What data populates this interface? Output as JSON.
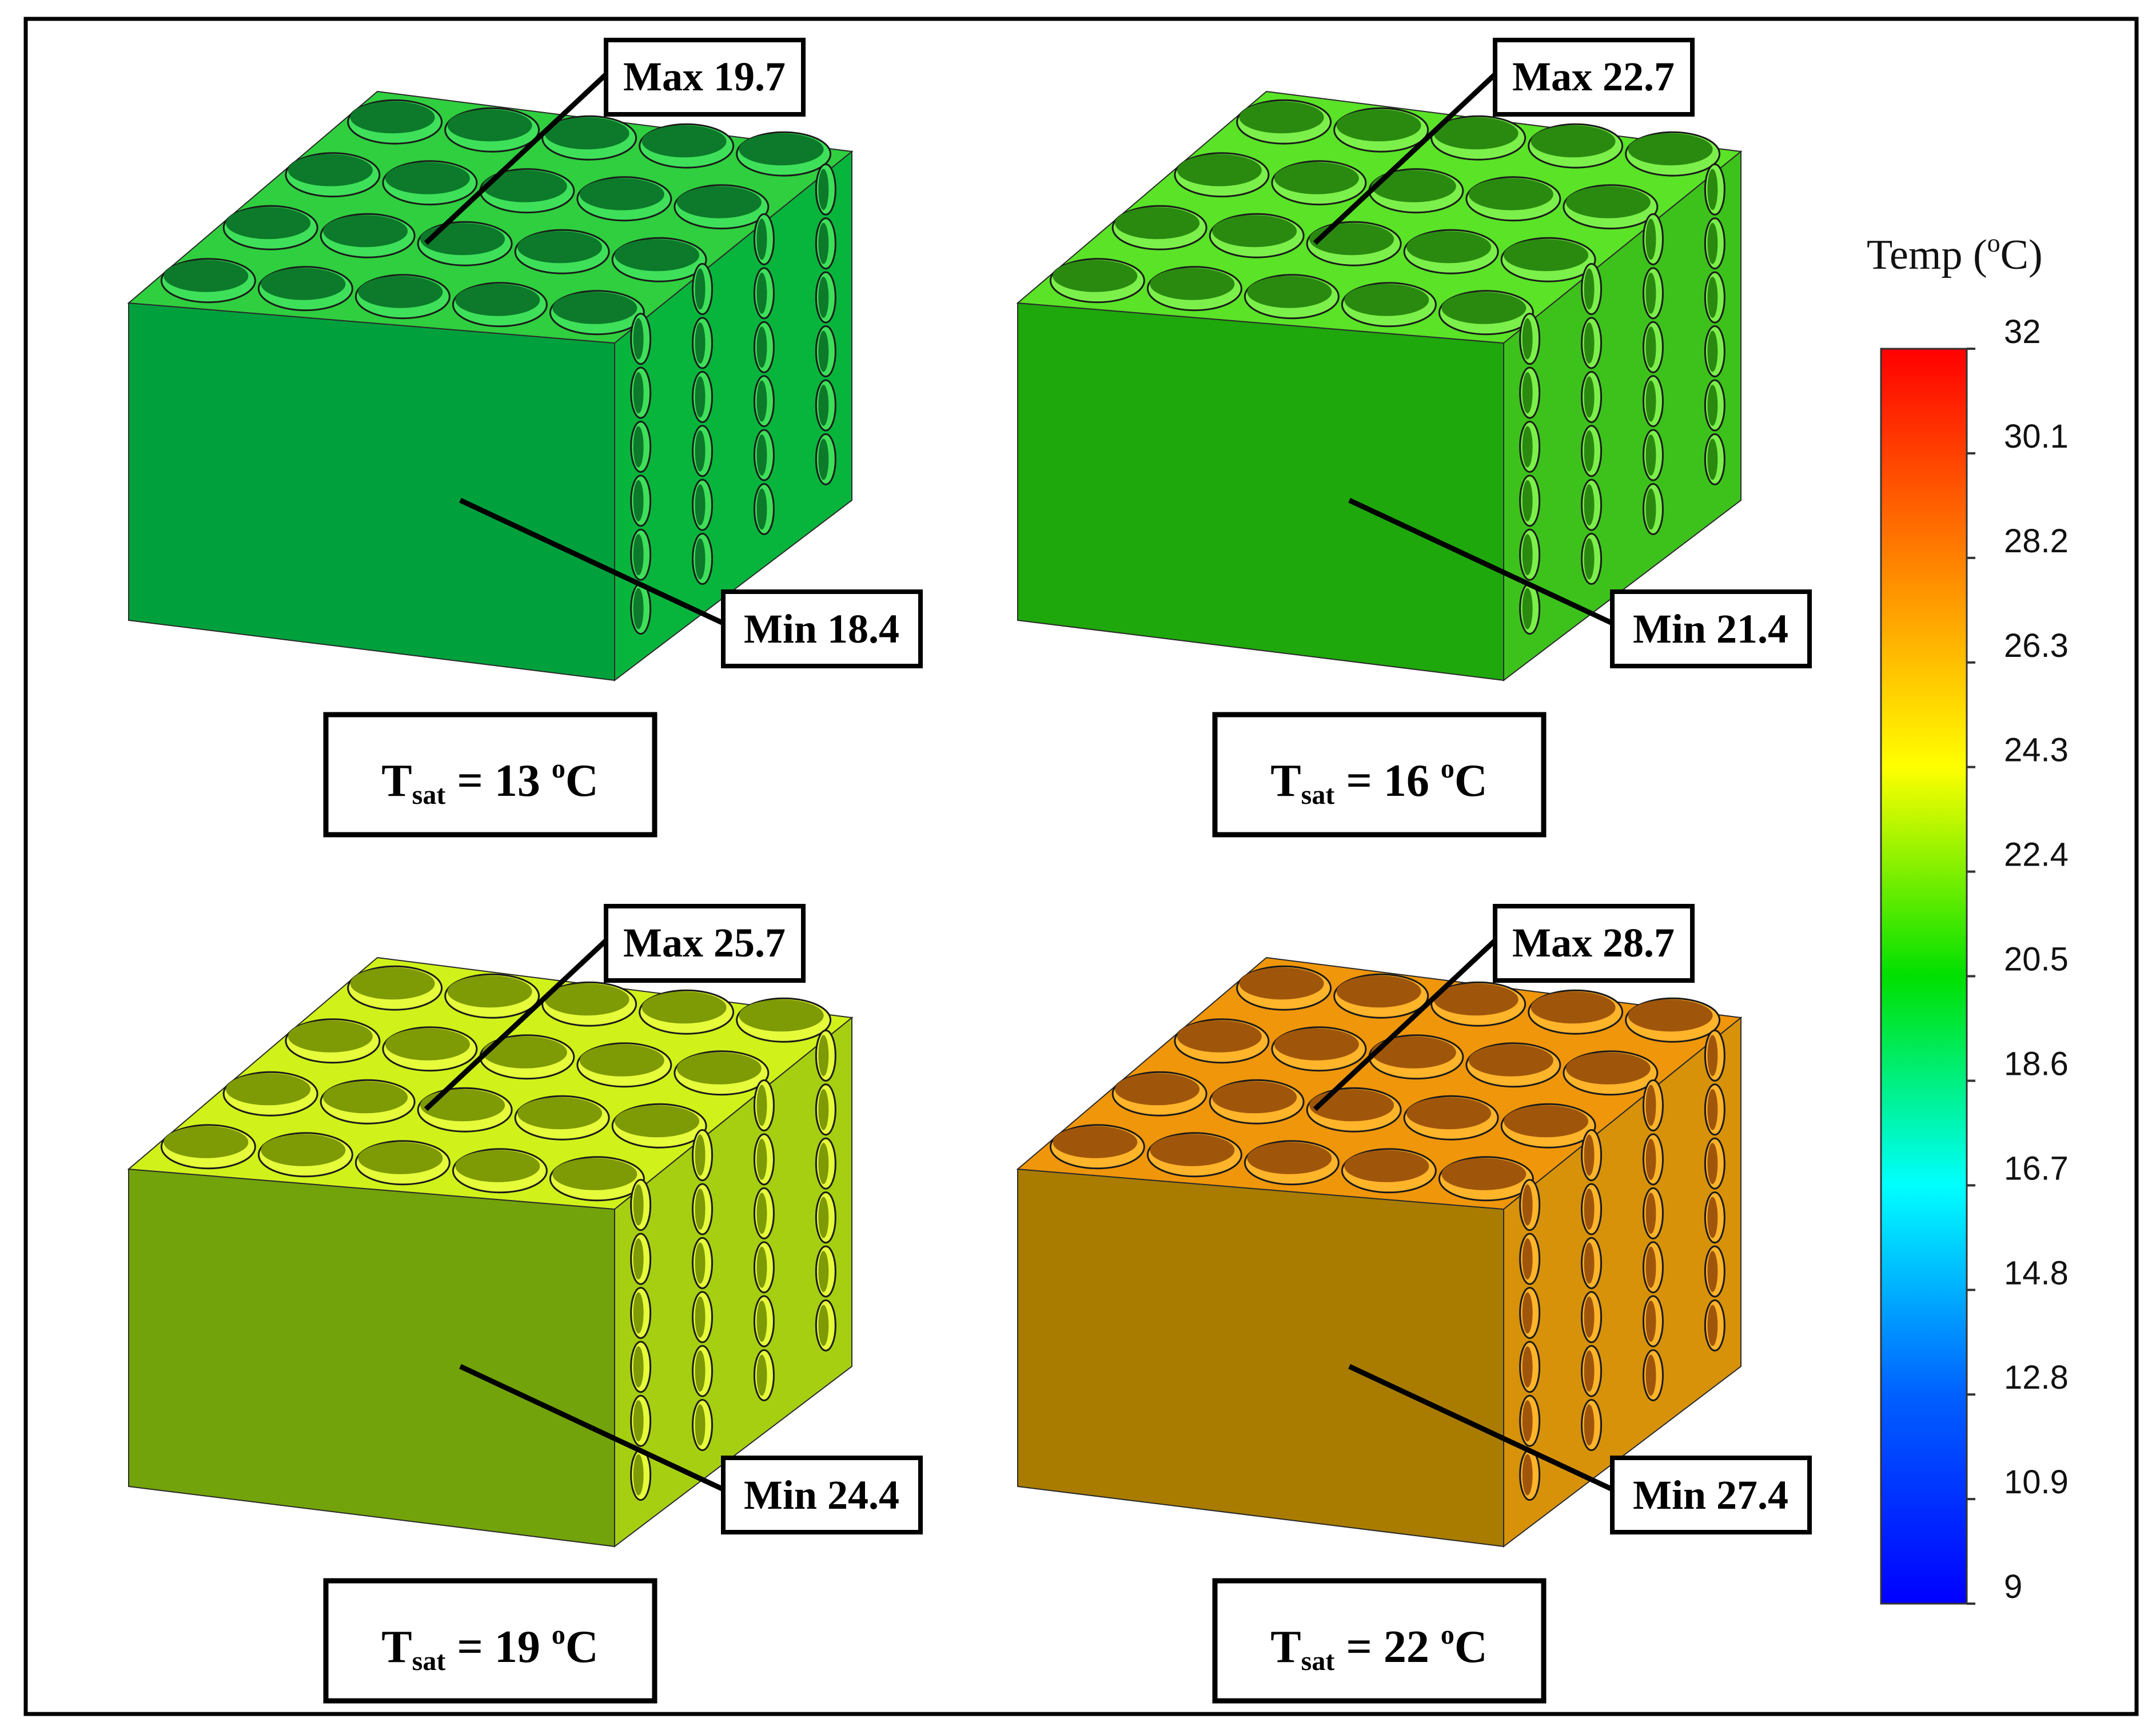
{
  "panels": [
    {
      "id": "tsat-13",
      "max_label": "Max 19.7",
      "min_label": "Min 18.4",
      "tsat": {
        "symbol": "T",
        "subscript": "sat",
        "value": "= 13",
        "sup": "o",
        "unit": "C"
      },
      "colors": {
        "top": "#2fcf3f",
        "front": "#00a13c",
        "side": "#07b53d",
        "hole_dark": "#0c7a2a",
        "hole_light": "#3ee05a"
      }
    },
    {
      "id": "tsat-16",
      "max_label": "Max 22.7",
      "min_label": "Min 21.4",
      "tsat": {
        "symbol": "T",
        "subscript": "sat",
        "value": "= 16",
        "sup": "o",
        "unit": "C"
      },
      "colors": {
        "top": "#5ae327",
        "front": "#1fa80c",
        "side": "#3dc21c",
        "hole_dark": "#2a8a10",
        "hole_light": "#7cf04a"
      }
    },
    {
      "id": "tsat-19",
      "max_label": "Max 25.7",
      "min_label": "Min 24.4",
      "tsat": {
        "symbol": "T",
        "subscript": "sat",
        "value": "= 19",
        "sup": "o",
        "unit": "C"
      },
      "colors": {
        "top": "#d0f21a",
        "front": "#73a30a",
        "side": "#a6cf12",
        "hole_dark": "#7e9a05",
        "hole_light": "#e6fb3a"
      }
    },
    {
      "id": "tsat-22",
      "max_label": "Max 28.7",
      "min_label": "Min 27.4",
      "tsat": {
        "symbol": "T",
        "subscript": "sat",
        "value": "= 22",
        "sup": "o",
        "unit": "C"
      },
      "colors": {
        "top": "#f0960a",
        "front": "#a97c00",
        "side": "#d7920a",
        "hole_dark": "#a0560a",
        "hole_light": "#ffb42a"
      }
    }
  ],
  "colorbar": {
    "title": "Temp (",
    "title_sup": "o",
    "title_end": "C)",
    "ticks": [
      "32",
      "30.1",
      "28.2",
      "26.3",
      "24.3",
      "22.4",
      "20.5",
      "18.6",
      "16.7",
      "14.8",
      "12.8",
      "10.9",
      "9"
    ],
    "colors": [
      "#ff0000",
      "#ff8000",
      "#ffff00",
      "#00e000",
      "#00ffff",
      "#0060ff",
      "#0000ff"
    ]
  }
}
